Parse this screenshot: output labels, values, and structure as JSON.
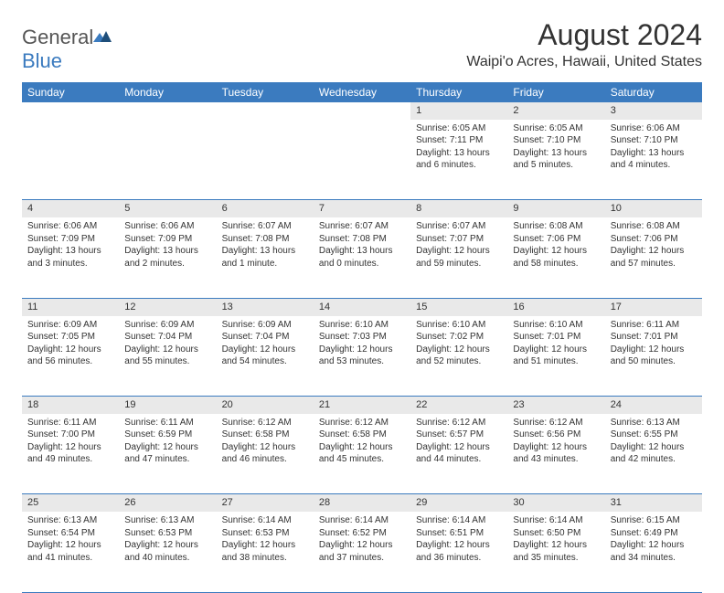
{
  "brand": {
    "part1": "General",
    "part2": "Blue"
  },
  "title": "August 2024",
  "location": "Waipi'o Acres, Hawaii, United States",
  "colors": {
    "header_bg": "#3b7bbf",
    "header_text": "#ffffff",
    "daynum_bg": "#e9e9e9",
    "rule": "#3b7bbf",
    "text": "#333333",
    "background": "#ffffff"
  },
  "day_headers": [
    "Sunday",
    "Monday",
    "Tuesday",
    "Wednesday",
    "Thursday",
    "Friday",
    "Saturday"
  ],
  "weeks": [
    {
      "nums": [
        "",
        "",
        "",
        "",
        "1",
        "2",
        "3"
      ],
      "cells": [
        null,
        null,
        null,
        null,
        {
          "sunrise": "6:05 AM",
          "sunset": "7:11 PM",
          "daylight": "13 hours and 6 minutes."
        },
        {
          "sunrise": "6:05 AM",
          "sunset": "7:10 PM",
          "daylight": "13 hours and 5 minutes."
        },
        {
          "sunrise": "6:06 AM",
          "sunset": "7:10 PM",
          "daylight": "13 hours and 4 minutes."
        }
      ]
    },
    {
      "nums": [
        "4",
        "5",
        "6",
        "7",
        "8",
        "9",
        "10"
      ],
      "cells": [
        {
          "sunrise": "6:06 AM",
          "sunset": "7:09 PM",
          "daylight": "13 hours and 3 minutes."
        },
        {
          "sunrise": "6:06 AM",
          "sunset": "7:09 PM",
          "daylight": "13 hours and 2 minutes."
        },
        {
          "sunrise": "6:07 AM",
          "sunset": "7:08 PM",
          "daylight": "13 hours and 1 minute."
        },
        {
          "sunrise": "6:07 AM",
          "sunset": "7:08 PM",
          "daylight": "13 hours and 0 minutes."
        },
        {
          "sunrise": "6:07 AM",
          "sunset": "7:07 PM",
          "daylight": "12 hours and 59 minutes."
        },
        {
          "sunrise": "6:08 AM",
          "sunset": "7:06 PM",
          "daylight": "12 hours and 58 minutes."
        },
        {
          "sunrise": "6:08 AM",
          "sunset": "7:06 PM",
          "daylight": "12 hours and 57 minutes."
        }
      ]
    },
    {
      "nums": [
        "11",
        "12",
        "13",
        "14",
        "15",
        "16",
        "17"
      ],
      "cells": [
        {
          "sunrise": "6:09 AM",
          "sunset": "7:05 PM",
          "daylight": "12 hours and 56 minutes."
        },
        {
          "sunrise": "6:09 AM",
          "sunset": "7:04 PM",
          "daylight": "12 hours and 55 minutes."
        },
        {
          "sunrise": "6:09 AM",
          "sunset": "7:04 PM",
          "daylight": "12 hours and 54 minutes."
        },
        {
          "sunrise": "6:10 AM",
          "sunset": "7:03 PM",
          "daylight": "12 hours and 53 minutes."
        },
        {
          "sunrise": "6:10 AM",
          "sunset": "7:02 PM",
          "daylight": "12 hours and 52 minutes."
        },
        {
          "sunrise": "6:10 AM",
          "sunset": "7:01 PM",
          "daylight": "12 hours and 51 minutes."
        },
        {
          "sunrise": "6:11 AM",
          "sunset": "7:01 PM",
          "daylight": "12 hours and 50 minutes."
        }
      ]
    },
    {
      "nums": [
        "18",
        "19",
        "20",
        "21",
        "22",
        "23",
        "24"
      ],
      "cells": [
        {
          "sunrise": "6:11 AM",
          "sunset": "7:00 PM",
          "daylight": "12 hours and 49 minutes."
        },
        {
          "sunrise": "6:11 AM",
          "sunset": "6:59 PM",
          "daylight": "12 hours and 47 minutes."
        },
        {
          "sunrise": "6:12 AM",
          "sunset": "6:58 PM",
          "daylight": "12 hours and 46 minutes."
        },
        {
          "sunrise": "6:12 AM",
          "sunset": "6:58 PM",
          "daylight": "12 hours and 45 minutes."
        },
        {
          "sunrise": "6:12 AM",
          "sunset": "6:57 PM",
          "daylight": "12 hours and 44 minutes."
        },
        {
          "sunrise": "6:12 AM",
          "sunset": "6:56 PM",
          "daylight": "12 hours and 43 minutes."
        },
        {
          "sunrise": "6:13 AM",
          "sunset": "6:55 PM",
          "daylight": "12 hours and 42 minutes."
        }
      ]
    },
    {
      "nums": [
        "25",
        "26",
        "27",
        "28",
        "29",
        "30",
        "31"
      ],
      "cells": [
        {
          "sunrise": "6:13 AM",
          "sunset": "6:54 PM",
          "daylight": "12 hours and 41 minutes."
        },
        {
          "sunrise": "6:13 AM",
          "sunset": "6:53 PM",
          "daylight": "12 hours and 40 minutes."
        },
        {
          "sunrise": "6:14 AM",
          "sunset": "6:53 PM",
          "daylight": "12 hours and 38 minutes."
        },
        {
          "sunrise": "6:14 AM",
          "sunset": "6:52 PM",
          "daylight": "12 hours and 37 minutes."
        },
        {
          "sunrise": "6:14 AM",
          "sunset": "6:51 PM",
          "daylight": "12 hours and 36 minutes."
        },
        {
          "sunrise": "6:14 AM",
          "sunset": "6:50 PM",
          "daylight": "12 hours and 35 minutes."
        },
        {
          "sunrise": "6:15 AM",
          "sunset": "6:49 PM",
          "daylight": "12 hours and 34 minutes."
        }
      ]
    }
  ],
  "labels": {
    "sunrise": "Sunrise:",
    "sunset": "Sunset:",
    "daylight": "Daylight:"
  }
}
